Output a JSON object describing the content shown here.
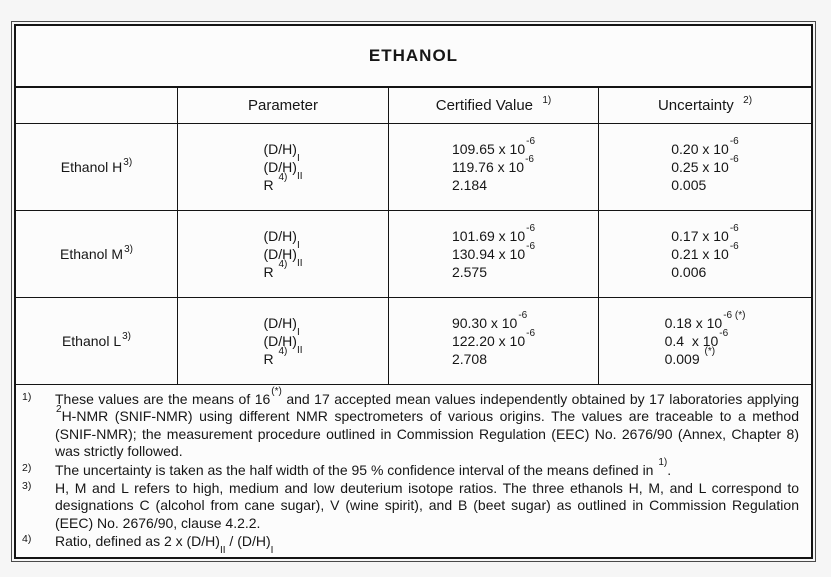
{
  "title": "ETHANOL",
  "table": {
    "column_headers": {
      "sample": "",
      "parameter": "Parameter",
      "certified_value": "Certified Value  ^{1)}",
      "uncertainty": "Uncertainty  ^{2)}"
    },
    "rows": [
      {
        "label": "Ethanol H ^{3)}",
        "parameters": [
          "(D/H)_{I}",
          "(D/H)_{II}",
          "R ^{4)}"
        ],
        "certified_values": [
          "109.65 x 10^{-6}",
          "119.76 x 10^{-6}",
          "2.184"
        ],
        "uncertainties": [
          "0.20 x 10^{-6}",
          "0.25 x 10^{-6}",
          "0.005"
        ]
      },
      {
        "label": "Ethanol M ^{3)}",
        "parameters": [
          "(D/H)_{I}",
          "(D/H)_{II}",
          "R ^{4)}"
        ],
        "certified_values": [
          "101.69 x 10^{-6}",
          "130.94 x 10^{-6}",
          "2.575"
        ],
        "uncertainties": [
          "0.17 x 10^{-6}",
          "0.21 x 10^{-6}",
          "0.006"
        ]
      },
      {
        "label": "Ethanol L ^{3)}",
        "parameters": [
          "(D/H)_{I}",
          "(D/H)_{II}",
          "R ^{4)}"
        ],
        "certified_values": [
          "90.30 x 10^{-6}",
          "122.20 x 10^{-6}",
          "2.708"
        ],
        "uncertainties": [
          "0.18 x 10^{-6 (*)}",
          "0.4  x 10^{-6}",
          "0.009 ^{(*)}"
        ]
      }
    ]
  },
  "footnotes": [
    {
      "marker": "1)",
      "text": "These values are the means of 16^{(*)} and 17 accepted mean values independently obtained by 17 laboratories applying ^{2}H-NMR (SNIF-NMR) using different NMR spectrometers of various origins. The values are traceable to a method (SNIF-NMR); the measurement procedure outlined in Commission Regulation (EEC) No. 2676/90 (Annex, Chapter 8) was strictly followed."
    },
    {
      "marker": "2)",
      "text": "The uncertainty is taken as the half width of the 95 % confidence interval of the means defined in ^{1)}."
    },
    {
      "marker": "3)",
      "text": "H, M and L refers to high, medium and low deuterium isotope ratios. The three ethanols H, M, and L correspond to designations C (alcohol from cane sugar), V (wine spirit), and B (beet sugar) as outlined in Commission Regulation (EEC) No. 2676/90, clause 4.2.2."
    },
    {
      "marker": "4)",
      "text": "Ratio, defined as 2 x (D/H)_{II} / (D/H)_{I}"
    }
  ]
}
